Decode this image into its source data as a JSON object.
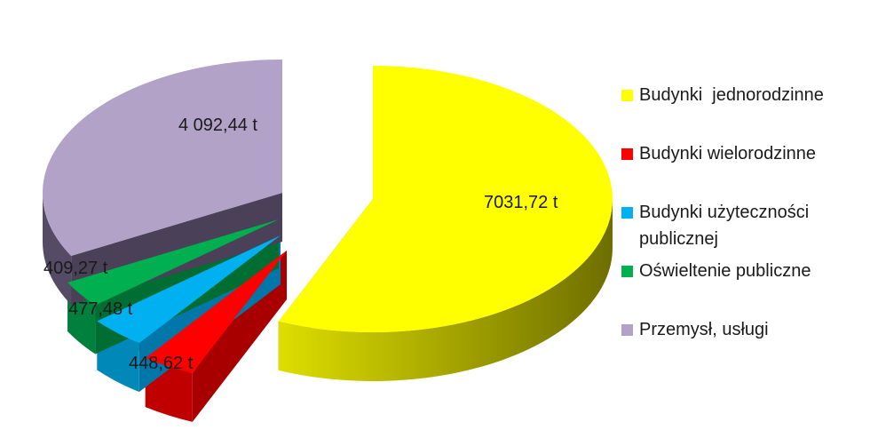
{
  "chart_data": {
    "type": "pie",
    "title": "",
    "legend_position": "right",
    "slices": [
      {
        "name": "Budynki  jednorodzinne",
        "value": 7031.72,
        "label": "7031,72 t",
        "color": "#ffff00"
      },
      {
        "name": "Budynki wielorodzinne",
        "value": 448.62,
        "label": "448,62 t",
        "color": "#ff0000"
      },
      {
        "name": "Budynki użyteczności publicznej",
        "value": 477.48,
        "label": "477,48 t",
        "color": "#00b0f0"
      },
      {
        "name": "Oświeltenie publiczne",
        "value": 409.27,
        "label": "409,27 t",
        "color": "#00b050"
      },
      {
        "name": "Przemysł, usługi",
        "value": 4092.44,
        "label": "4 092,44 t",
        "color": "#b3a2c7"
      }
    ]
  }
}
